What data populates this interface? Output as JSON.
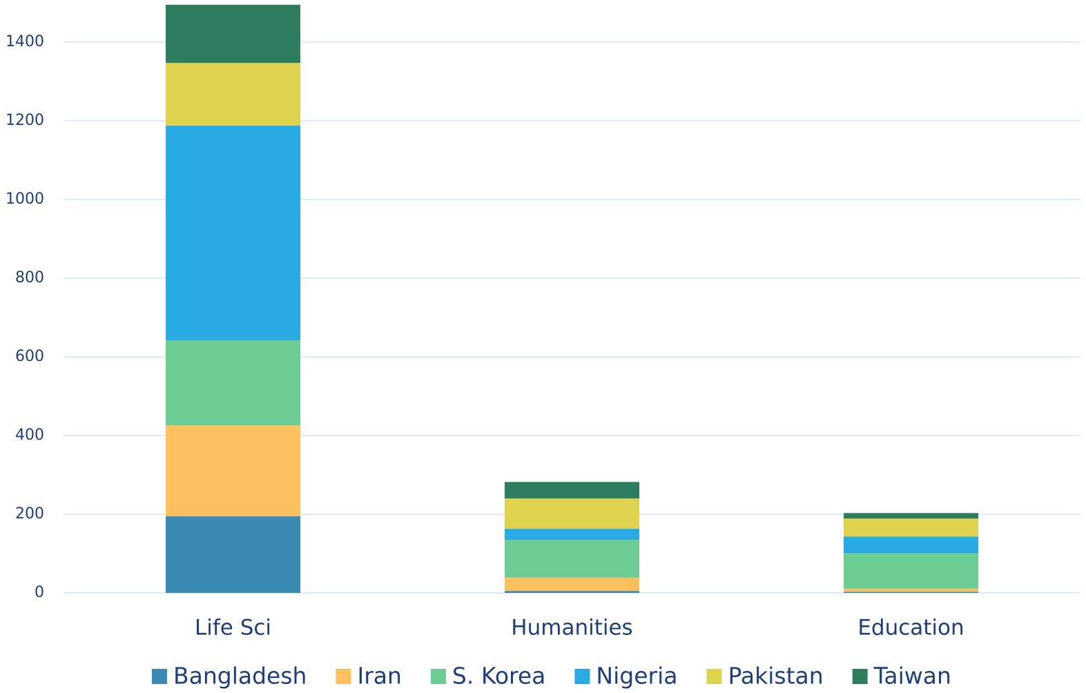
{
  "chart_data": {
    "type": "stacked-bar",
    "categories": [
      "Life Sci",
      "Humanities",
      "Education"
    ],
    "series": [
      {
        "name": "Bangladesh",
        "color": "#3a8ab3",
        "values": [
          195,
          5,
          3
        ]
      },
      {
        "name": "Iran",
        "color": "#fcc05e",
        "values": [
          231,
          34,
          8
        ]
      },
      {
        "name": "S. Korea",
        "color": "#6bcd94",
        "values": [
          216,
          96,
          90
        ]
      },
      {
        "name": "Nigeria",
        "color": "#2aaae2",
        "values": [
          546,
          28,
          42
        ]
      },
      {
        "name": "Pakistan",
        "color": "#ded24e",
        "values": [
          159,
          77,
          46
        ]
      },
      {
        "name": "Taiwan",
        "color": "#2e7d5e",
        "values": [
          148,
          42,
          14
        ]
      }
    ],
    "ylim": [
      0,
      1500
    ],
    "yticks": [
      0,
      200,
      400,
      600,
      800,
      1000,
      1200,
      1400
    ],
    "grid": true,
    "legend": "bottom"
  }
}
